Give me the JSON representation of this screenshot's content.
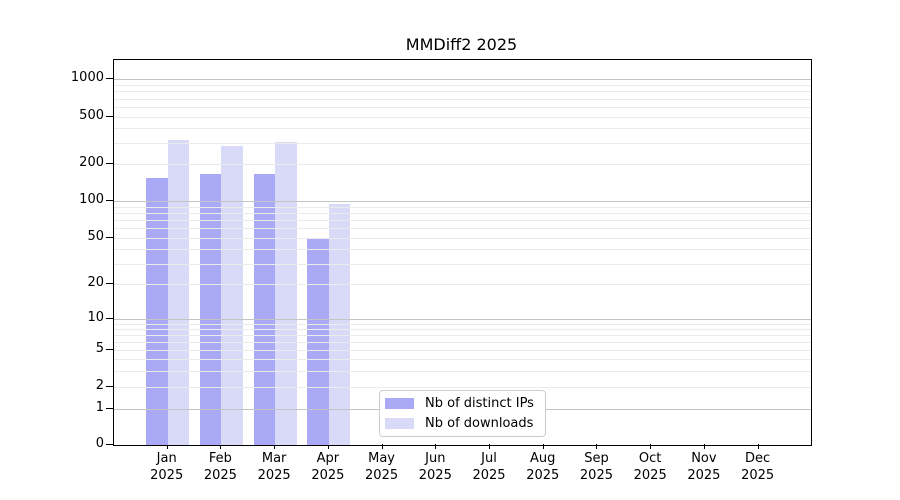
{
  "figure": {
    "background": "#ffffff"
  },
  "chart_data": {
    "type": "bar",
    "title": "MMDiff2 2025",
    "x_axis": {
      "months": [
        "Jan",
        "Feb",
        "Mar",
        "Apr",
        "May",
        "Jun",
        "Jul",
        "Aug",
        "Sep",
        "Oct",
        "Nov",
        "Dec"
      ],
      "year": "2025"
    },
    "y_axis": {
      "scale": "symlog",
      "ticks": [
        0,
        1,
        2,
        5,
        10,
        20,
        50,
        100,
        200,
        500,
        1000
      ],
      "ylim": [
        0,
        1400
      ]
    },
    "series": [
      {
        "name": "Nb of distinct IPs",
        "color": "#a9a9f5",
        "values": [
          155,
          168,
          168,
          50,
          0,
          0,
          0,
          0,
          0,
          0,
          0,
          0
        ]
      },
      {
        "name": "Nb of downloads",
        "color": "#d9d9f8",
        "values": [
          320,
          285,
          310,
          96,
          0,
          0,
          0,
          0,
          0,
          0,
          0,
          0
        ]
      }
    ],
    "grid": {
      "which": "both",
      "minor_color": "#ebebeb",
      "major_color": "#c4c4c4",
      "major_values": [
        1,
        10,
        100,
        1000
      ]
    },
    "legend": {
      "border_color": "#cccccc",
      "background": "#ffffff",
      "position": "lower center"
    }
  }
}
